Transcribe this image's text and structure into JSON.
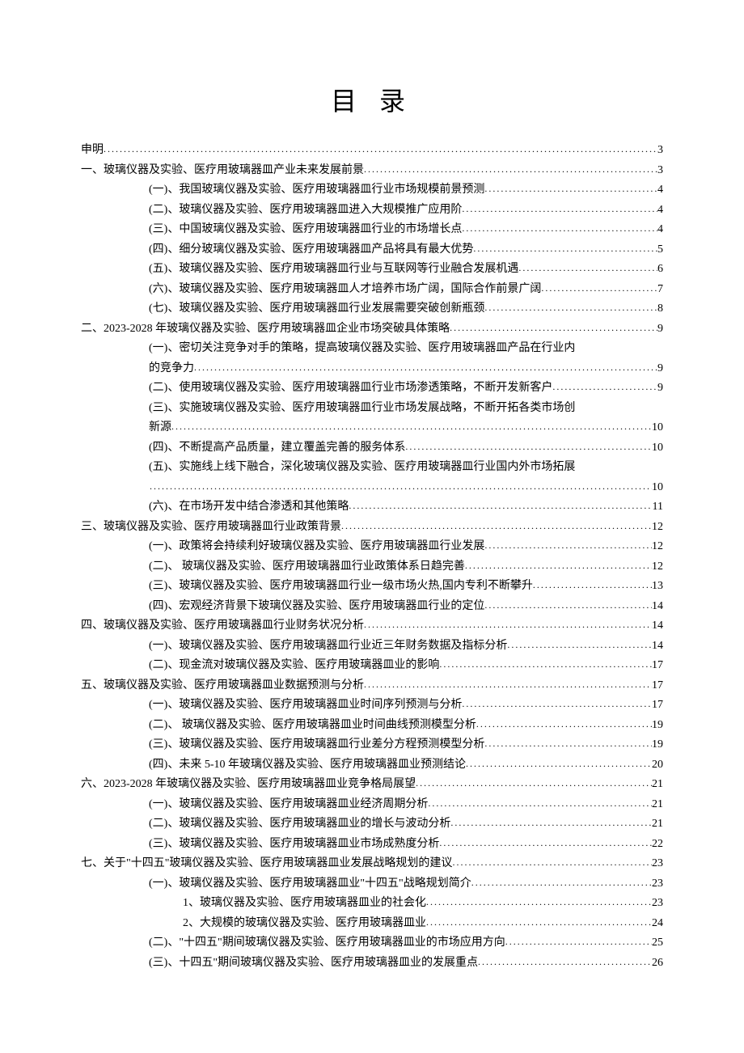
{
  "title": "目 录",
  "typography": {
    "body_font": "SimSun",
    "title_fontsize_pt": 24,
    "line_fontsize_pt": 10.5,
    "text_color": "#000000",
    "background_color": "#ffffff"
  },
  "entries": [
    {
      "type": "line",
      "indent": 0,
      "label": "申明",
      "page": "3"
    },
    {
      "type": "line",
      "indent": 0,
      "label": "一、玻璃仪器及实验、医疗用玻璃器皿产业未来发展前景",
      "page": "3"
    },
    {
      "type": "line",
      "indent": 1,
      "label": "(一)、我国玻璃仪器及实验、医疗用玻璃器皿行业市场规模前景预测",
      "page": "4"
    },
    {
      "type": "line",
      "indent": 1,
      "label": "(二)、玻璃仪器及实验、医疗用玻璃器皿进入大规模推广应用阶",
      "page": "4"
    },
    {
      "type": "line",
      "indent": 1,
      "label": "(三)、中国玻璃仪器及实验、医疗用玻璃器皿行业的市场增长点",
      "page": "4"
    },
    {
      "type": "line",
      "indent": 1,
      "label": "(四)、细分玻璃仪器及实验、医疗用玻璃器皿产品将具有最大优势",
      "page": "5"
    },
    {
      "type": "line",
      "indent": 1,
      "label": "(五)、玻璃仪器及实验、医疗用玻璃器皿行业与互联网等行业融合发展机遇",
      "page": "6"
    },
    {
      "type": "line",
      "indent": 1,
      "label": "(六)、玻璃仪器及实验、医疗用玻璃器皿人才培养市场广阔，国际合作前景广阔",
      "page": "7"
    },
    {
      "type": "line",
      "indent": 1,
      "label": "(七)、玻璃仪器及实验、医疗用玻璃器皿行业发展需要突破创新瓶颈",
      "page": "8"
    },
    {
      "type": "line",
      "indent": 0,
      "label": "二、2023-2028 年玻璃仪器及实验、医疗用玻璃器皿企业市场突破具体策略",
      "page": "9"
    },
    {
      "type": "wrap",
      "indent": 1,
      "first": "(一)、密切关注竞争对手的策略，提高玻璃仪器及实验、医疗用玻璃器皿产品在行业内",
      "cont": "的竞争力",
      "page": "9"
    },
    {
      "type": "line",
      "indent": 1,
      "label": "(二)、使用玻璃仪器及实验、医疗用玻璃器皿行业市场渗透策略，不断开发新客户",
      "page": "9"
    },
    {
      "type": "wrap",
      "indent": 1,
      "first": "(三)、实施玻璃仪器及实验、医疗用玻璃器皿行业市场发展战略，不断开拓各类市场创",
      "cont": "新源",
      "page": "10"
    },
    {
      "type": "line",
      "indent": 1,
      "label": "(四)、不断提高产品质量，建立覆盖完善的服务体系",
      "page": "10"
    },
    {
      "type": "wrap",
      "indent": 1,
      "first": "(五)、实施线上线下融合，深化玻璃仪器及实验、医疗用玻璃器皿行业国内外市场拓展",
      "cont": "",
      "page": "10"
    },
    {
      "type": "line",
      "indent": 1,
      "label": "(六)、在市场开发中结合渗透和其他策略",
      "page": "11"
    },
    {
      "type": "line",
      "indent": 0,
      "label": "三、玻璃仪器及实验、医疗用玻璃器皿行业政策背景",
      "page": "12"
    },
    {
      "type": "line",
      "indent": 1,
      "label": "(一)、政策将会持续利好玻璃仪器及实验、医疗用玻璃器皿行业发展",
      "page": "12"
    },
    {
      "type": "line",
      "indent": 1,
      "label": "(二)、 玻璃仪器及实验、医疗用玻璃器皿行业政策体系日趋完善",
      "page": "12"
    },
    {
      "type": "line",
      "indent": 1,
      "label": "(三)、玻璃仪器及实验、医疗用玻璃器皿行业一级市场火热,国内专利不断攀升",
      "page": "13"
    },
    {
      "type": "line",
      "indent": 1,
      "label": "(四)、宏观经济背景下玻璃仪器及实验、医疗用玻璃器皿行业的定位",
      "page": "14"
    },
    {
      "type": "line",
      "indent": 0,
      "label": "四、玻璃仪器及实验、医疗用玻璃器皿行业财务状况分析",
      "page": "14"
    },
    {
      "type": "line",
      "indent": 1,
      "label": "(一)、玻璃仪器及实验、医疗用玻璃器皿行业近三年财务数据及指标分析",
      "page": "14"
    },
    {
      "type": "line",
      "indent": 1,
      "label": "(二)、现金流对玻璃仪器及实验、医疗用玻璃器皿业的影响",
      "page": "17"
    },
    {
      "type": "line",
      "indent": 0,
      "label": "五、玻璃仪器及实验、医疗用玻璃器皿业数据预测与分析",
      "page": "17"
    },
    {
      "type": "line",
      "indent": 1,
      "label": "(一)、玻璃仪器及实验、医疗用玻璃器皿业时间序列预测与分析",
      "page": "17"
    },
    {
      "type": "line",
      "indent": 1,
      "label": "(二)、 玻璃仪器及实验、医疗用玻璃器皿业时间曲线预测模型分析",
      "page": "19"
    },
    {
      "type": "line",
      "indent": 1,
      "label": "(三)、玻璃仪器及实验、医疗用玻璃器皿行业差分方程预测模型分析",
      "page": "19"
    },
    {
      "type": "line",
      "indent": 1,
      "label": "(四)、未来 5-10 年玻璃仪器及实验、医疗用玻璃器皿业预测结论",
      "page": "20"
    },
    {
      "type": "line",
      "indent": 0,
      "label": "六、2023-2028 年玻璃仪器及实验、医疗用玻璃器皿业竞争格局展望",
      "page": "21"
    },
    {
      "type": "line",
      "indent": 1,
      "label": "(一)、玻璃仪器及实验、医疗用玻璃器皿业经济周期分析",
      "page": "21"
    },
    {
      "type": "line",
      "indent": 1,
      "label": "(二)、玻璃仪器及实验、医疗用玻璃器皿业的增长与波动分析",
      "page": "21"
    },
    {
      "type": "line",
      "indent": 1,
      "label": "(三)、玻璃仪器及实验、医疗用玻璃器皿业市场成熟度分析",
      "page": "22"
    },
    {
      "type": "line",
      "indent": 0,
      "label": "七、关于\"十四五\"玻璃仪器及实验、医疗用玻璃器皿业发展战略规划的建议",
      "page": "23"
    },
    {
      "type": "line",
      "indent": 1,
      "label": "(一)、玻璃仪器及实验、医疗用玻璃器皿业\"十四五\"战略规划简介",
      "page": "23"
    },
    {
      "type": "line",
      "indent": 2,
      "label": "1、玻璃仪器及实验、医疗用玻璃器皿业的社会化",
      "page": "23"
    },
    {
      "type": "line",
      "indent": 2,
      "label": "2、大规模的玻璃仪器及实验、医疗用玻璃器皿业",
      "page": "24"
    },
    {
      "type": "line",
      "indent": 1,
      "label": "(二)、\"十四五\"期间玻璃仪器及实验、医疗用玻璃器皿业的市场应用方向",
      "page": "25"
    },
    {
      "type": "line",
      "indent": 1,
      "label": "(三)、十四五\"期间玻璃仪器及实验、医疗用玻璃器皿业的发展重点",
      "page": "26"
    }
  ]
}
